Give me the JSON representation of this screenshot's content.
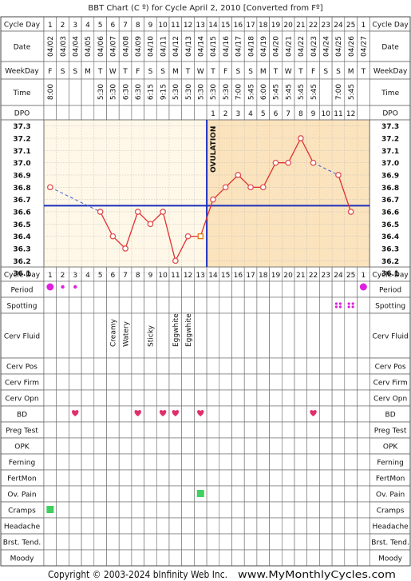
{
  "title": "BBT Chart (C º) for Cycle April 2, 2010  [Converted from Fº]",
  "copyright": "Copyright © 2003-2024 bInfinity Web Inc.",
  "site": "www.MyMonthlyCycles.com",
  "row_labels": {
    "cycle_day": "Cycle Day",
    "date": "Date",
    "weekday": "WeekDay",
    "time": "Time",
    "dpo": "DPO",
    "period": "Period",
    "spotting": "Spotting",
    "cerv_fluid": "Cerv Fluid",
    "cerv_pos": "Cerv Pos",
    "cerv_firm": "Cerv Firm",
    "cerv_opn": "Cerv Opn",
    "bd": "BD",
    "preg_test": "Preg Test",
    "opk": "OPK",
    "ferning": "Ferning",
    "fertmon": "FertMon",
    "ov_pain": "Ov. Pain",
    "cramps": "Cramps",
    "headache": "Headache",
    "brst_tend": "Brst. Tend.",
    "moody": "Moody"
  },
  "ovulation_label": "OVULATION",
  "cycle_days": [
    "1",
    "2",
    "3",
    "4",
    "5",
    "6",
    "7",
    "8",
    "9",
    "10",
    "11",
    "12",
    "13",
    "14",
    "15",
    "16",
    "17",
    "18",
    "19",
    "20",
    "21",
    "22",
    "23",
    "24",
    "25",
    "1"
  ],
  "dates": [
    "04/02",
    "04/03",
    "04/04",
    "04/05",
    "04/06",
    "04/07",
    "04/08",
    "04/09",
    "04/10",
    "04/11",
    "04/12",
    "04/13",
    "04/14",
    "04/15",
    "04/16",
    "04/17",
    "04/18",
    "04/19",
    "04/20",
    "04/21",
    "04/22",
    "04/23",
    "04/24",
    "04/25",
    "04/26",
    "04/27"
  ],
  "weekdays": [
    "F",
    "S",
    "S",
    "M",
    "T",
    "W",
    "T",
    "F",
    "S",
    "S",
    "M",
    "T",
    "W",
    "T",
    "F",
    "S",
    "S",
    "M",
    "T",
    "W",
    "T",
    "F",
    "S",
    "S",
    "M",
    "T"
  ],
  "times": [
    "8:00",
    "",
    "",
    "",
    "5:30",
    "5:30",
    "6:30",
    "6:30",
    "6:15",
    "9:15",
    "5:30",
    "5:30",
    "5:30",
    "5:30",
    "5:30",
    "7:00",
    "5:45",
    "6:00",
    "5:45",
    "5:45",
    "5:45",
    "5:45",
    "",
    "7:00",
    "5:45",
    ""
  ],
  "dpo": [
    "",
    "",
    "",
    "",
    "",
    "",
    "",
    "",
    "",
    "",
    "",
    "",
    "",
    "1",
    "2",
    "3",
    "4",
    "5",
    "6",
    "7",
    "8",
    "9",
    "10",
    "11",
    "12",
    ""
  ],
  "cerv_fluid": [
    "",
    "",
    "",
    "",
    "",
    "Creamy",
    "Watery",
    "",
    "Sticky",
    "",
    "Eggwhite",
    "Eggwhite",
    "",
    "",
    "",
    "",
    "",
    "",
    "",
    "",
    "",
    "",
    "",
    "",
    "",
    ""
  ],
  "period": [
    "heavy",
    "light",
    "light",
    "",
    "",
    "",
    "",
    "",
    "",
    "",
    "",
    "",
    "",
    "",
    "",
    "",
    "",
    "",
    "",
    "",
    "",
    "",
    "",
    "",
    "",
    "heavy"
  ],
  "spotting": [
    "",
    "",
    "",
    "",
    "",
    "",
    "",
    "",
    "",
    "",
    "",
    "",
    "",
    "",
    "",
    "",
    "",
    "",
    "",
    "",
    "",
    "",
    "",
    "spot",
    "spot",
    ""
  ],
  "bd": [
    "",
    "",
    "bd",
    "",
    "",
    "",
    "",
    "bd",
    "",
    "bd",
    "bd",
    "",
    "bd",
    "",
    "",
    "",
    "",
    "",
    "",
    "",
    "",
    "bd",
    "",
    "",
    "",
    ""
  ],
  "ov_pain": [
    "",
    "",
    "",
    "",
    "",
    "",
    "",
    "",
    "",
    "",
    "",
    "",
    "yes",
    "",
    "",
    "",
    "",
    "",
    "",
    "",
    "",
    "",
    "",
    "",
    "",
    ""
  ],
  "cramps": [
    "yes",
    "",
    "",
    "",
    "",
    "",
    "",
    "",
    "",
    "",
    "",
    "",
    "",
    "",
    "",
    "",
    "",
    "",
    "",
    "",
    "",
    "",
    "",
    "",
    "",
    ""
  ],
  "colors": {
    "pre_ov_bg": "#fff8e8",
    "post_ov_bg": "#fbe3bd",
    "line": "#e03030",
    "point": "#e05050",
    "coverline": "#1a2fbf",
    "period": "#e020e0",
    "bd": "#e0306a",
    "box": "#40d060"
  },
  "chart_data": {
    "type": "line",
    "title": "BBT Chart (C º) for Cycle April 2, 2010  [Converted from Fº]",
    "xlabel": "Cycle Day",
    "ylabel": "",
    "ylim": [
      36.1,
      37.3
    ],
    "yticks": [
      "37.3",
      "37.2",
      "37.1",
      "37.0",
      "36.9",
      "36.8",
      "36.7",
      "36.6",
      "36.5",
      "36.4",
      "36.3",
      "36.2",
      "36.1"
    ],
    "x": [
      1,
      2,
      3,
      4,
      5,
      6,
      7,
      8,
      9,
      10,
      11,
      12,
      13,
      14,
      15,
      16,
      17,
      18,
      19,
      20,
      21,
      22,
      23,
      24,
      25,
      26
    ],
    "temperatures": [
      36.8,
      null,
      null,
      null,
      36.6,
      36.4,
      36.3,
      36.6,
      36.5,
      36.6,
      36.2,
      36.4,
      36.4,
      36.7,
      36.8,
      36.9,
      36.8,
      36.8,
      37.0,
      37.0,
      37.2,
      37.0,
      null,
      36.9,
      36.6,
      null
    ],
    "ovulation_day": 13,
    "coverline": 36.65,
    "grid": true
  }
}
